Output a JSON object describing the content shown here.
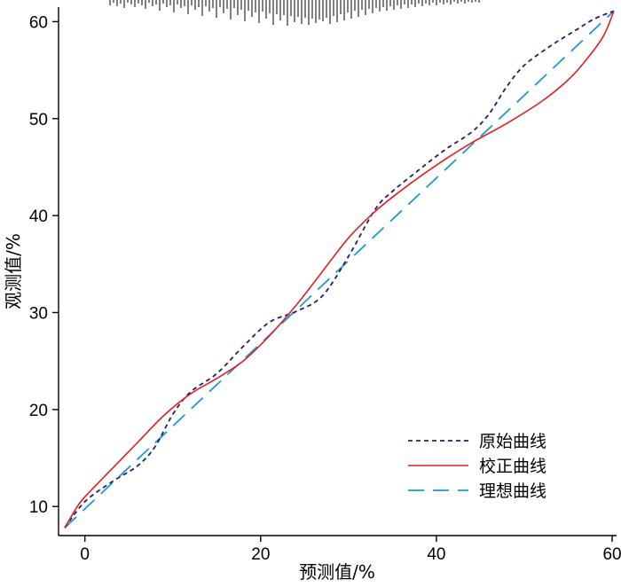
{
  "chart_data": {
    "type": "line",
    "xlabel": "预测值/%",
    "ylabel": "观测值/%",
    "xlim": [
      -3,
      60.5
    ],
    "ylim": [
      7,
      61.5
    ],
    "xticks": [
      0,
      20,
      40,
      60
    ],
    "yticks": [
      10,
      20,
      30,
      40,
      50,
      60
    ],
    "legend_position": "bottom-right",
    "series": [
      {
        "name": "原始曲线",
        "style": "dotted",
        "color": "#2b1c6b",
        "x": [
          -2.3,
          0,
          3,
          6,
          8,
          10,
          12,
          15,
          18,
          21,
          24,
          27,
          30,
          33,
          35,
          38,
          41,
          44,
          46,
          48,
          50,
          53,
          56,
          58,
          60.2
        ],
        "y": [
          7.8,
          10.5,
          12.5,
          14.2,
          16.2,
          19.5,
          21.8,
          23.7,
          26.5,
          29,
          30.1,
          31.7,
          35.8,
          40.6,
          42.5,
          44.7,
          46.8,
          48.6,
          50.5,
          53.3,
          55.5,
          57.5,
          59.2,
          60.3,
          61.1
        ]
      },
      {
        "name": "校正曲线",
        "style": "solid",
        "color": "#e02020",
        "x": [
          -2.3,
          -1,
          0,
          3,
          6,
          9,
          12,
          15,
          18,
          21,
          24,
          27,
          30,
          33,
          36,
          40,
          44,
          48,
          52,
          55,
          57,
          59,
          60.2
        ],
        "y": [
          7.8,
          9.8,
          11,
          13.8,
          16.6,
          19.4,
          21.6,
          23.2,
          25,
          27.6,
          30.7,
          34.2,
          37.7,
          40.4,
          42.6,
          45.2,
          47.5,
          49.5,
          51.8,
          54,
          56,
          58.5,
          61.1
        ]
      },
      {
        "name": "理想曲线",
        "style": "dashed",
        "color": "#1a9bd7",
        "x": [
          -2.3,
          60.2
        ],
        "y": [
          7.8,
          61.1
        ]
      }
    ],
    "rug_heights": [
      6,
      3,
      7,
      4,
      9,
      3,
      5,
      8,
      4,
      6,
      10,
      3,
      7,
      5,
      12,
      4,
      8,
      6,
      14,
      5,
      9,
      7,
      16,
      6,
      11,
      8,
      18,
      7,
      13,
      9,
      20,
      8,
      15,
      10,
      22,
      9,
      17,
      11,
      24,
      12,
      19,
      14,
      26,
      13,
      21,
      15,
      28,
      16,
      23,
      17,
      29,
      18,
      25,
      19,
      27,
      20,
      28,
      21,
      26,
      22,
      24,
      20,
      27,
      18,
      25,
      16,
      23,
      14,
      21,
      12,
      19,
      11,
      17,
      10,
      15,
      9,
      13,
      8,
      12,
      7,
      11,
      6,
      10,
      5,
      9,
      5,
      8,
      4,
      7,
      4,
      6,
      3,
      6,
      3,
      5,
      3,
      5,
      2,
      4,
      2,
      4,
      2,
      3,
      2,
      3
    ]
  }
}
